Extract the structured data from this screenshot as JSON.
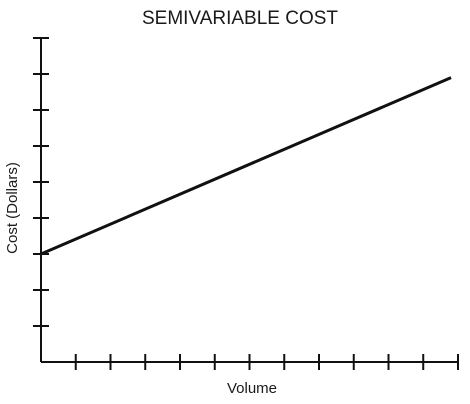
{
  "chart_data": {
    "type": "line",
    "title": "SEMIVARIABLE COST",
    "xlabel": "Volume",
    "ylabel": "Cost (Dollars)",
    "xlim": [
      0,
      12
    ],
    "ylim": [
      0,
      9
    ],
    "x_ticks": [
      1,
      2,
      3,
      4,
      5,
      6,
      7,
      8,
      9,
      10,
      11,
      12
    ],
    "y_ticks": [
      1,
      2,
      3,
      4,
      5,
      6,
      7,
      8,
      9
    ],
    "grid": false,
    "legend": "none",
    "series": [
      {
        "x": [
          0,
          11.8
        ],
        "y": [
          3.0,
          7.9
        ],
        "color": "#111111"
      }
    ]
  }
}
